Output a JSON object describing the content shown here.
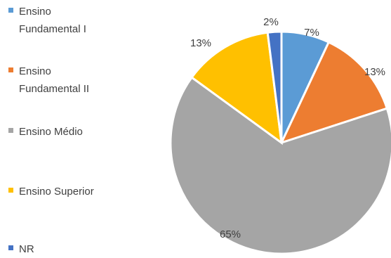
{
  "chart_data": {
    "type": "pie",
    "legend": "left",
    "slices": [
      {
        "label": "Ensino\nFundamental I",
        "value": 7,
        "display": "7%",
        "color": "#5b9bd5"
      },
      {
        "label": "Ensino\nFundamental II",
        "value": 13,
        "display": "13%",
        "color": "#ed7d31"
      },
      {
        "label": "Ensino Médio",
        "value": 65,
        "display": "65%",
        "color": "#a5a5a5"
      },
      {
        "label": "Ensino Superior",
        "value": 13,
        "display": "13%",
        "color": "#ffc000"
      },
      {
        "label": "NR",
        "value": 2,
        "display": "2%",
        "color": "#4472c4"
      }
    ]
  }
}
